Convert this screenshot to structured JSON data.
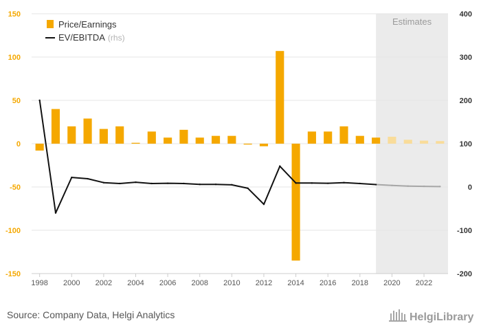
{
  "chart_data": {
    "type": "bar",
    "x": [
      1998,
      1999,
      2000,
      2001,
      2002,
      2003,
      2004,
      2005,
      2006,
      2007,
      2008,
      2009,
      2010,
      2011,
      2012,
      2013,
      2014,
      2015,
      2016,
      2017,
      2018,
      2019,
      2020,
      2021,
      2022,
      2023
    ],
    "series": [
      {
        "name": "Price/Earnings",
        "type": "bar",
        "axis": "left",
        "color": "#f5a800",
        "estimate_color": "#f9dc9a",
        "values": [
          -8,
          40,
          20,
          29,
          17,
          20,
          1,
          14,
          7,
          16,
          7,
          9,
          9,
          -1,
          -3,
          107,
          -135,
          14,
          14,
          20,
          9,
          7,
          8,
          4.5,
          3.5,
          3
        ]
      },
      {
        "name": "EV/EBITDA",
        "name_suffix": "(rhs)",
        "type": "line",
        "axis": "right",
        "color": "#111111",
        "estimate_color": "#a6a6a6",
        "values": [
          200,
          -60,
          22,
          19,
          10,
          8,
          11,
          8,
          8.5,
          8,
          6,
          6,
          5,
          -3,
          -40,
          48,
          9,
          9,
          8.5,
          10,
          8,
          5.5,
          3.5,
          2,
          1.5,
          1
        ]
      }
    ],
    "estimates_from": 2019,
    "estimates_label": "Estimates",
    "y_left": {
      "ticks": [
        150,
        100,
        50,
        0,
        -50,
        -100,
        -150
      ],
      "min": -150,
      "max": 150,
      "color": "#f5a800"
    },
    "y_right": {
      "ticks": [
        400,
        300,
        200,
        100,
        0,
        -100,
        -200
      ],
      "min": -200,
      "max": 400,
      "color": "#333333"
    },
    "x_ticks": [
      1998,
      2000,
      2002,
      2004,
      2006,
      2008,
      2010,
      2012,
      2014,
      2016,
      2018,
      2020,
      2022
    ],
    "legend_position": "top-left",
    "grid": true
  },
  "source": "Source: Company Data, Helgi Analytics",
  "brand": "HelgiLibrary"
}
